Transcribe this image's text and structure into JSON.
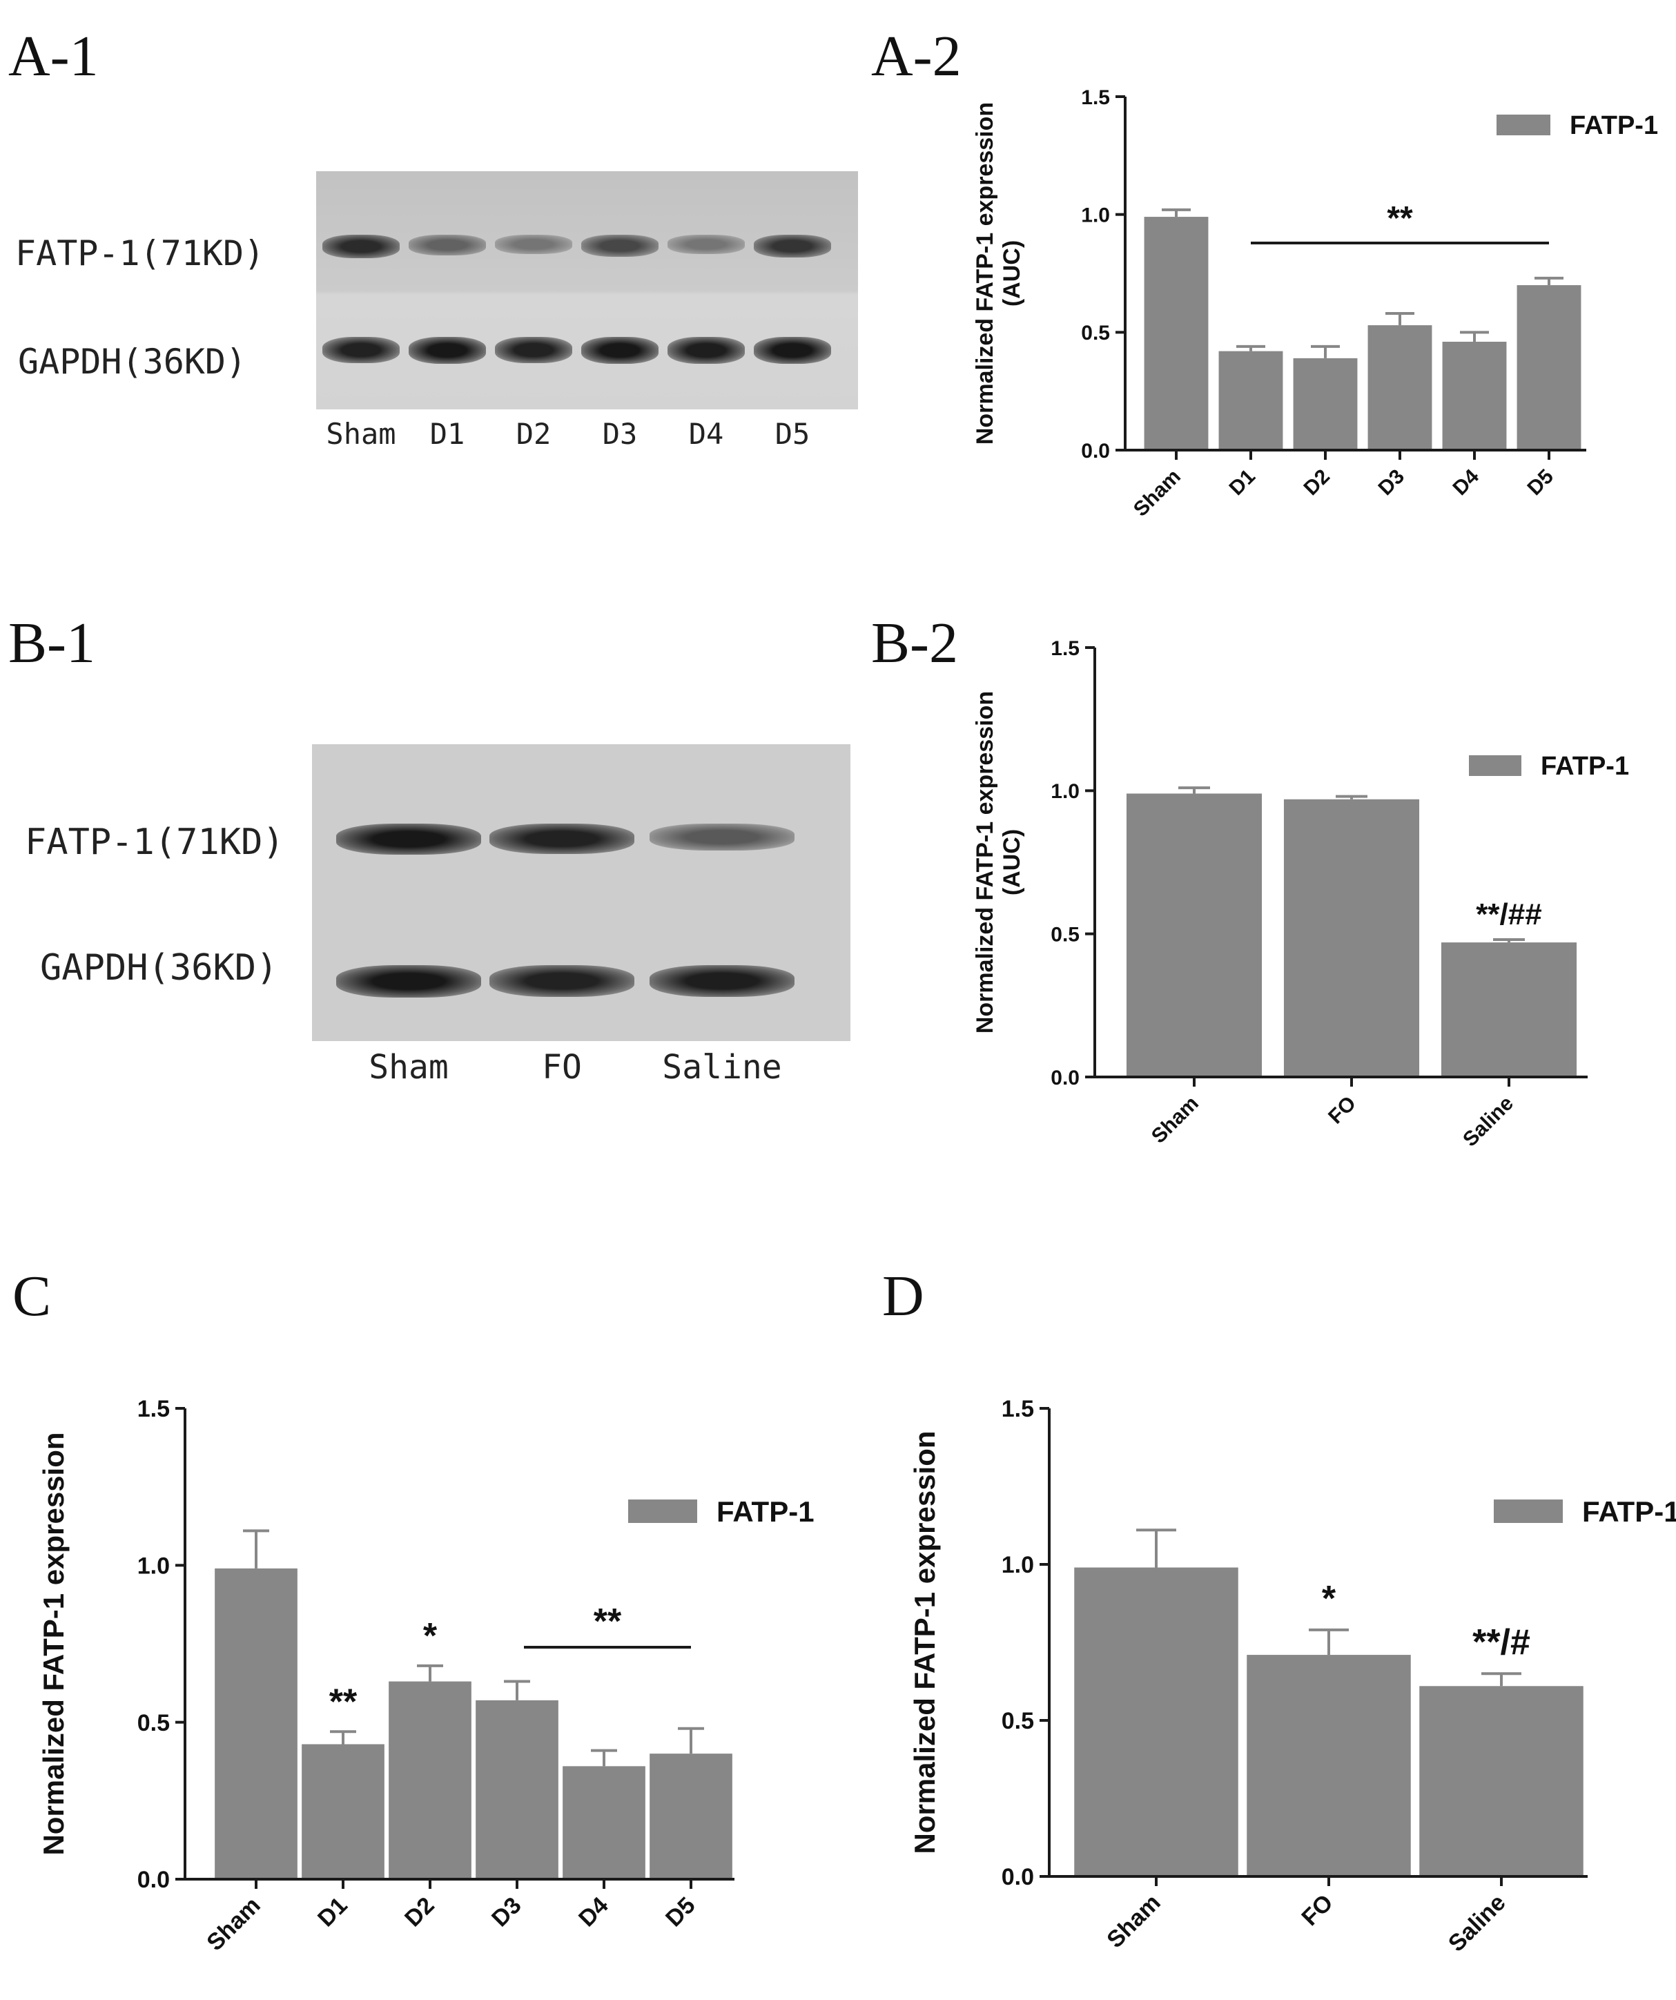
{
  "panels": {
    "a1": "A-1",
    "a2": "A-2",
    "b1": "B-1",
    "b2": "B-2",
    "c": "C",
    "d": "D"
  },
  "blot_a": {
    "rows": [
      "FATP-1(71KD)",
      "GAPDH(36KD)"
    ],
    "lanes": [
      "Sham",
      "D1",
      "D2",
      "D3",
      "D4",
      "D5"
    ],
    "fatp_intensity": [
      0.85,
      0.55,
      0.45,
      0.7,
      0.45,
      0.8
    ],
    "gapdh_intensity": [
      0.9,
      0.95,
      0.9,
      0.95,
      0.92,
      0.95
    ]
  },
  "blot_b": {
    "rows": [
      "FATP-1(71KD)",
      "GAPDH(36KD)"
    ],
    "lanes": [
      "Sham",
      "FO",
      "Saline"
    ],
    "fatp_intensity": [
      0.95,
      0.9,
      0.6
    ],
    "gapdh_intensity": [
      0.95,
      0.9,
      0.92
    ]
  },
  "chart_data": [
    {
      "id": "A-2",
      "type": "bar",
      "categories": [
        "Sham",
        "D1",
        "D2",
        "D3",
        "D4",
        "D5"
      ],
      "series": [
        {
          "name": "FATP-1",
          "values": [
            0.99,
            0.42,
            0.39,
            0.53,
            0.46,
            0.7
          ],
          "errors": [
            0.03,
            0.02,
            0.05,
            0.05,
            0.04,
            0.03
          ]
        }
      ],
      "ylabel": "Normalized FATP-1 expression",
      "ylabel2": "(AUC)",
      "ylim": [
        0,
        1.5
      ],
      "yticks": [
        "0.0",
        "0.5",
        "1.0",
        "1.5"
      ],
      "legend_placement": "top-right",
      "annotations": [
        {
          "text": "**",
          "over": [
            "D1",
            "D5"
          ],
          "line": true
        }
      ]
    },
    {
      "id": "B-2",
      "type": "bar",
      "categories": [
        "Sham",
        "FO",
        "Saline"
      ],
      "series": [
        {
          "name": "FATP-1",
          "values": [
            0.99,
            0.97,
            0.47
          ],
          "errors": [
            0.02,
            0.01,
            0.01
          ]
        }
      ],
      "ylabel": "Normalized FATP-1 expression",
      "ylabel2": "(AUC)",
      "ylim": [
        0,
        1.5
      ],
      "yticks": [
        "0.0",
        "0.5",
        "1.0",
        "1.5"
      ],
      "legend_placement": "top-right",
      "annotations": [
        {
          "text": "**/##",
          "over": [
            "Saline"
          ],
          "line": false
        }
      ]
    },
    {
      "id": "C",
      "type": "bar",
      "categories": [
        "Sham",
        "D1",
        "D2",
        "D3",
        "D4",
        "D5"
      ],
      "series": [
        {
          "name": "FATP-1",
          "values": [
            0.99,
            0.43,
            0.63,
            0.57,
            0.36,
            0.4
          ],
          "errors": [
            0.12,
            0.04,
            0.05,
            0.06,
            0.05,
            0.08
          ]
        }
      ],
      "ylabel": "Normalized FATP-1 expression",
      "ylim": [
        0,
        1.5
      ],
      "yticks": [
        "0.0",
        "0.5",
        "1.0",
        "1.5"
      ],
      "legend_placement": "top-right",
      "annotations": [
        {
          "text": "**",
          "over": [
            "D1"
          ],
          "line": false
        },
        {
          "text": "*",
          "over": [
            "D2"
          ],
          "line": false
        },
        {
          "text": "**",
          "over": [
            "D3",
            "D5"
          ],
          "line": true
        }
      ]
    },
    {
      "id": "D",
      "type": "bar",
      "categories": [
        "Sham",
        "FO",
        "Saline"
      ],
      "series": [
        {
          "name": "FATP-1",
          "values": [
            0.99,
            0.71,
            0.61
          ],
          "errors": [
            0.12,
            0.08,
            0.04
          ]
        }
      ],
      "ylabel": "Normalized FATP-1 expression",
      "ylim": [
        0,
        1.5
      ],
      "yticks": [
        "0.0",
        "0.5",
        "1.0",
        "1.5"
      ],
      "legend_placement": "top-right",
      "annotations": [
        {
          "text": "*",
          "over": [
            "FO"
          ],
          "line": false
        },
        {
          "text": "**/#",
          "over": [
            "Saline"
          ],
          "line": false
        }
      ]
    }
  ],
  "colors": {
    "bar": "#878787",
    "axis": "#1a1a1a",
    "text": "#111111"
  }
}
